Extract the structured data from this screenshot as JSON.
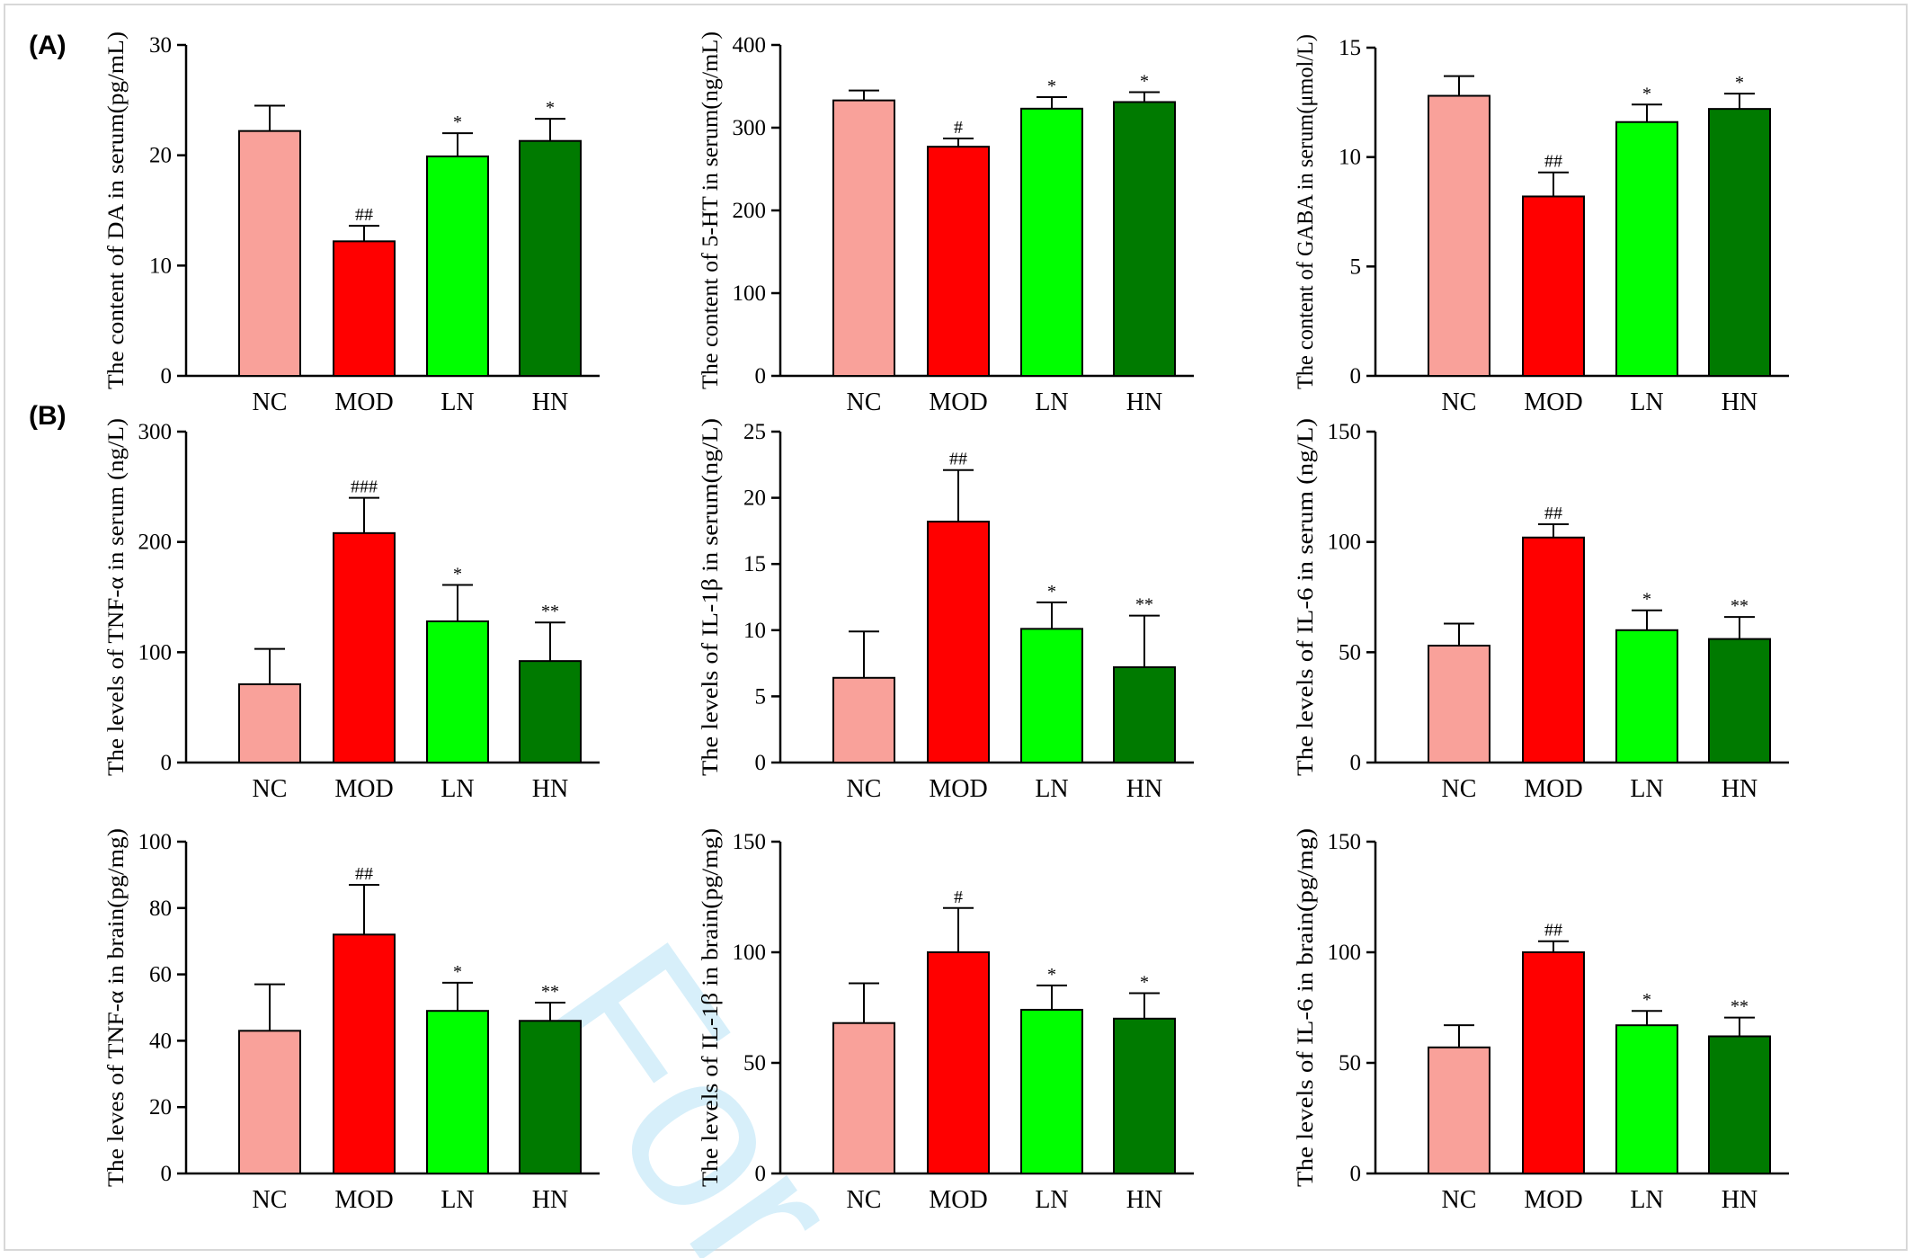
{
  "panel_labels": [
    "(A)",
    "(B)"
  ],
  "watermark": "For",
  "colors": {
    "NC": "#f9a19a",
    "MOD": "#ff0000",
    "LN": "#00ff00",
    "HN": "#007a00",
    "watermark": "#bde6f7"
  },
  "chart_data": [
    {
      "type": "bar",
      "panel": "A",
      "categories": [
        "NC",
        "MOD",
        "LN",
        "HN"
      ],
      "values": [
        22.2,
        12.2,
        19.9,
        21.3
      ],
      "errors": [
        2.3,
        1.4,
        2.1,
        2.0
      ],
      "significance": [
        "",
        "##",
        "*",
        "*"
      ],
      "ylabel": "The content of DA in serum(pg/mL)",
      "ylim": [
        0,
        30
      ],
      "yticks": [
        0,
        10,
        20,
        30
      ]
    },
    {
      "type": "bar",
      "panel": "A",
      "categories": [
        "NC",
        "MOD",
        "LN",
        "HN"
      ],
      "values": [
        333,
        277,
        323,
        331
      ],
      "errors": [
        12,
        10,
        14,
        12
      ],
      "significance": [
        "",
        "#",
        "*",
        "*"
      ],
      "ylabel": "The content of 5-HT in serum(ng/mL)",
      "ylim": [
        0,
        400
      ],
      "yticks": [
        0,
        100,
        200,
        300,
        400
      ]
    },
    {
      "type": "bar",
      "panel": "A",
      "categories": [
        "NC",
        "MOD",
        "LN",
        "HN"
      ],
      "values": [
        12.8,
        8.2,
        11.6,
        12.2
      ],
      "errors": [
        0.9,
        1.1,
        0.8,
        0.7
      ],
      "significance": [
        "",
        "##",
        "*",
        "*"
      ],
      "ylabel": "The content of GABA in serum(μmol/L)",
      "ylim": [
        0,
        15
      ],
      "yticks": [
        0,
        5,
        10,
        15
      ]
    },
    {
      "type": "bar",
      "panel": "B",
      "categories": [
        "NC",
        "MOD",
        "LN",
        "HN"
      ],
      "values": [
        71,
        208,
        128,
        92
      ],
      "errors": [
        32,
        32,
        33,
        35
      ],
      "significance": [
        "",
        "###",
        "*",
        "**"
      ],
      "ylabel": "The levels of TNF-α in serum (ng/L)",
      "ylim": [
        0,
        300
      ],
      "yticks": [
        0,
        100,
        200,
        300
      ]
    },
    {
      "type": "bar",
      "panel": "B",
      "categories": [
        "NC",
        "MOD",
        "LN",
        "HN"
      ],
      "values": [
        6.4,
        18.2,
        10.1,
        7.2
      ],
      "errors": [
        3.5,
        3.9,
        2.0,
        3.9
      ],
      "significance": [
        "",
        "##",
        "*",
        "**"
      ],
      "ylabel": "The levels of IL-1β in serum(ng/L)",
      "ylim": [
        0,
        25
      ],
      "yticks": [
        0,
        5,
        10,
        15,
        20,
        25
      ]
    },
    {
      "type": "bar",
      "panel": "B",
      "categories": [
        "NC",
        "MOD",
        "LN",
        "HN"
      ],
      "values": [
        53,
        102,
        60,
        56
      ],
      "errors": [
        10,
        6,
        9,
        10
      ],
      "significance": [
        "",
        "##",
        "*",
        "**"
      ],
      "ylabel": "The levels of IL-6 in serum (ng/L)",
      "ylim": [
        0,
        150
      ],
      "yticks": [
        0,
        50,
        100,
        150
      ]
    },
    {
      "type": "bar",
      "panel": "B",
      "categories": [
        "NC",
        "MOD",
        "LN",
        "HN"
      ],
      "values": [
        43,
        72,
        49,
        46
      ],
      "errors": [
        14,
        15,
        8.5,
        5.5
      ],
      "significance": [
        "",
        "##",
        "*",
        "**"
      ],
      "ylabel": "The leves of TNF-α in brain(pg/mg)",
      "ylim": [
        0,
        100
      ],
      "yticks": [
        0,
        20,
        40,
        60,
        80,
        100
      ]
    },
    {
      "type": "bar",
      "panel": "B",
      "categories": [
        "NC",
        "MOD",
        "LN",
        "HN"
      ],
      "values": [
        68,
        100,
        74,
        70
      ],
      "errors": [
        18,
        20,
        11,
        11.5
      ],
      "significance": [
        "",
        "#",
        "*",
        "*"
      ],
      "ylabel": "The levels of IL-1β in brain(pg/mg)",
      "ylim": [
        0,
        150
      ],
      "yticks": [
        0,
        50,
        100,
        150
      ]
    },
    {
      "type": "bar",
      "panel": "B",
      "categories": [
        "NC",
        "MOD",
        "LN",
        "HN"
      ],
      "values": [
        57,
        100,
        67,
        62
      ],
      "errors": [
        10,
        5,
        6.5,
        8.5
      ],
      "significance": [
        "",
        "##",
        "*",
        "**"
      ],
      "ylabel": "The levels of IL-6 in brain(pg/mg)",
      "ylim": [
        0,
        150
      ],
      "yticks": [
        0,
        50,
        100,
        150
      ]
    }
  ]
}
